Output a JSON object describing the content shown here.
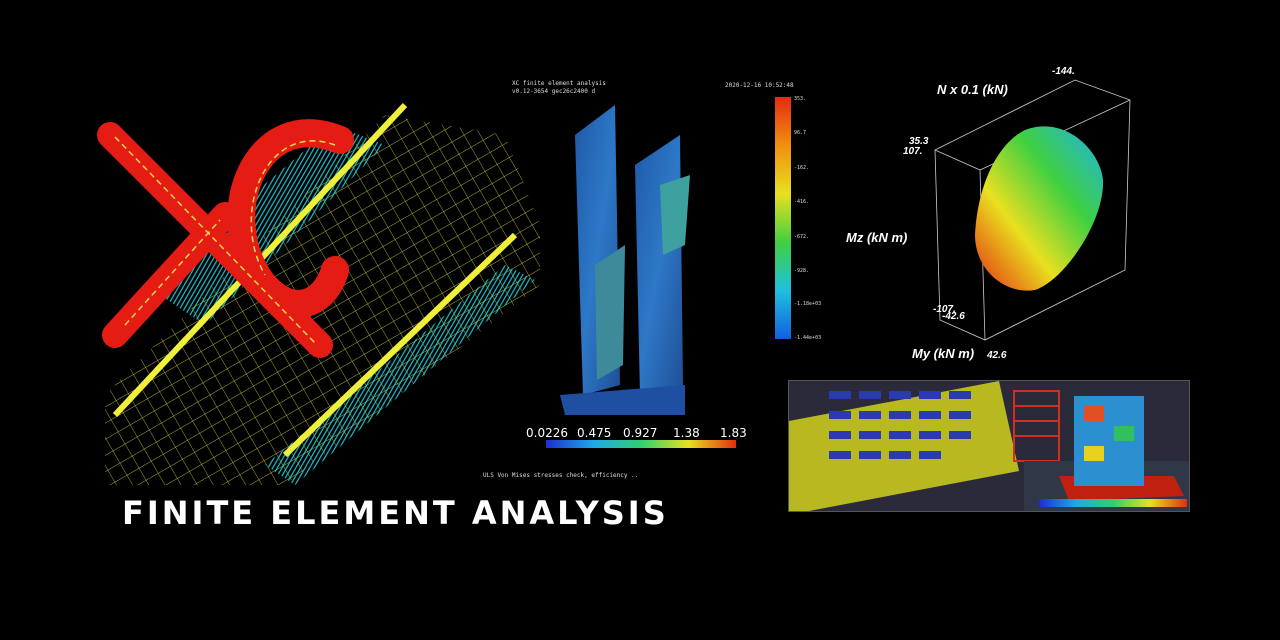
{
  "banner": {
    "title": "FINITE ELEMENT ANALYSIS"
  },
  "logo": {
    "text": "XC"
  },
  "steel_panel": {
    "header_line1": "XC finite element analysis",
    "header_line2": "v0.12-3654 gec26c2400 d",
    "timestamp": "2020-12-16 10:52:48",
    "colorbar_labels": [
      "353.",
      "96.7",
      "-162.",
      "-416.",
      "-672.",
      "-928.",
      "-1.18e+03",
      "-1.44e+03"
    ],
    "scale_labels": [
      "0.0226",
      "0.475",
      "0.927",
      "1.38",
      "1.83"
    ],
    "caption": "ULS Von Mises stresses check, efficiency .."
  },
  "interaction_diagram": {
    "n_axis_label": "N x 0.1 (kN)",
    "mz_axis_label": "Mz (kN m)",
    "my_axis_label": "My (kN m)",
    "tick_n_top": "-144.",
    "tick_mz_top": "35.3",
    "tick_n_left": "107.",
    "tick_mz_bottom": "-107.",
    "tick_my_left": "-42.6",
    "tick_my_right": "42.6"
  },
  "colors": {
    "background": "#000000",
    "logo_fill": "#e51c14",
    "logo_lines": "#f5d84a",
    "mesh": "#e6e64a",
    "arrows": "#22d3e6"
  }
}
